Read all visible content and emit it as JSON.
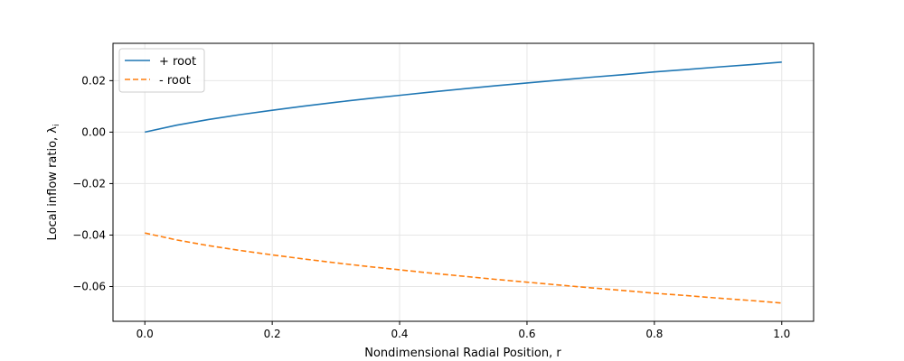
{
  "chart_data": {
    "type": "line",
    "title": "",
    "xlabel": "Nondimensional Radial Position, r",
    "ylabel": "Local inflow ratio, λ",
    "ylabel_subscript": "i",
    "xlim": [
      -0.05,
      1.05
    ],
    "ylim": [
      -0.0735,
      0.0345
    ],
    "xticks": [
      0.0,
      0.2,
      0.4,
      0.6,
      0.8,
      1.0
    ],
    "xtick_labels": [
      "0.0",
      "0.2",
      "0.4",
      "0.6",
      "0.8",
      "1.0"
    ],
    "yticks": [
      -0.06,
      -0.04,
      -0.02,
      0.0,
      0.02
    ],
    "ytick_labels": [
      "−0.06",
      "−0.04",
      "−0.02",
      "0.00",
      "0.02"
    ],
    "grid": true,
    "legend_position": "top-left",
    "series": [
      {
        "name": "+ root",
        "color": "#1f77b4",
        "style": "solid",
        "x": [
          0.0,
          0.05,
          0.1,
          0.15,
          0.2,
          0.25,
          0.3,
          0.35,
          0.4,
          0.45,
          0.5,
          0.55,
          0.6,
          0.65,
          0.7,
          0.75,
          0.8,
          0.85,
          0.9,
          0.95,
          1.0
        ],
        "y": [
          0.0,
          0.0027,
          0.0049,
          0.0068,
          0.0085,
          0.0101,
          0.0116,
          0.013,
          0.0143,
          0.0156,
          0.0168,
          0.018,
          0.0191,
          0.0202,
          0.0213,
          0.0223,
          0.0234,
          0.0243,
          0.0253,
          0.0262,
          0.0272
        ]
      },
      {
        "name": "- root",
        "color": "#ff7f0e",
        "style": "dashed",
        "x": [
          0.0,
          0.05,
          0.1,
          0.15,
          0.2,
          0.25,
          0.3,
          0.35,
          0.4,
          0.45,
          0.5,
          0.55,
          0.6,
          0.65,
          0.7,
          0.75,
          0.8,
          0.85,
          0.9,
          0.95,
          1.0
        ],
        "y": [
          -0.0392,
          -0.0419,
          -0.0441,
          -0.046,
          -0.0477,
          -0.0493,
          -0.0508,
          -0.0522,
          -0.0535,
          -0.0548,
          -0.056,
          -0.0572,
          -0.0583,
          -0.0594,
          -0.0605,
          -0.0615,
          -0.0626,
          -0.0635,
          -0.0645,
          -0.0654,
          -0.0664
        ]
      }
    ]
  }
}
